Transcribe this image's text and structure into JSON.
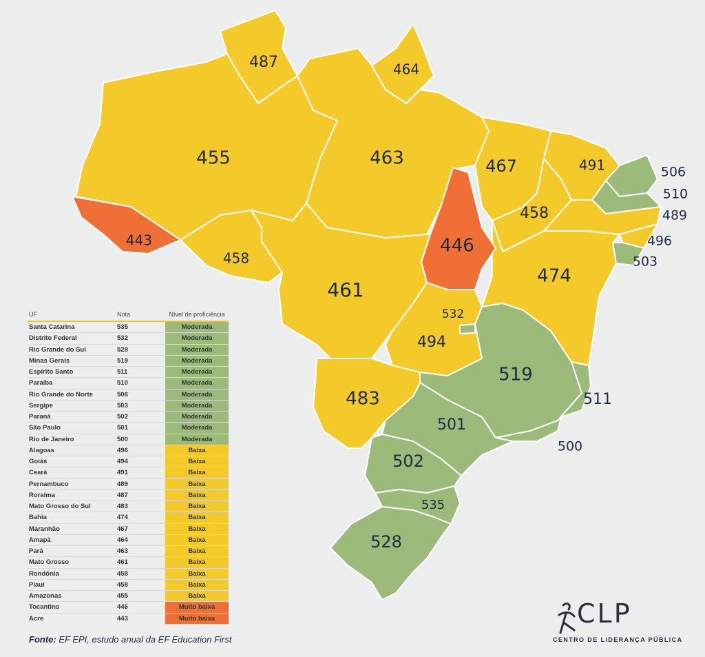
{
  "colors": {
    "moderada": "#9cbb7a",
    "baixa": "#f4ca2a",
    "muito_baixa": "#ef6f36",
    "text": "#1f2a44"
  },
  "table": {
    "col_uf": "UF",
    "col_nota": "Nota",
    "col_nivel": "Nível de proficiência",
    "rows": [
      {
        "uf": "Santa Catarina",
        "nota": "535",
        "nivel": "Moderada",
        "cat": "moderada"
      },
      {
        "uf": "Distrito Federal",
        "nota": "532",
        "nivel": "Moderada",
        "cat": "moderada"
      },
      {
        "uf": "Rio Grande do Sul",
        "nota": "528",
        "nivel": "Moderada",
        "cat": "moderada"
      },
      {
        "uf": "Minas Gerais",
        "nota": "519",
        "nivel": "Moderada",
        "cat": "moderada"
      },
      {
        "uf": "Espírito Santo",
        "nota": "511",
        "nivel": "Moderada",
        "cat": "moderada"
      },
      {
        "uf": "Paraíba",
        "nota": "510",
        "nivel": "Moderada",
        "cat": "moderada"
      },
      {
        "uf": "Rio Grande do Norte",
        "nota": "506",
        "nivel": "Moderada",
        "cat": "moderada"
      },
      {
        "uf": "Sergipe",
        "nota": "503",
        "nivel": "Moderada",
        "cat": "moderada"
      },
      {
        "uf": "Paraná",
        "nota": "502",
        "nivel": "Moderada",
        "cat": "moderada"
      },
      {
        "uf": "São Paulo",
        "nota": "501",
        "nivel": "Moderada",
        "cat": "moderada"
      },
      {
        "uf": "Rio de Janeiro",
        "nota": "500",
        "nivel": "Moderada",
        "cat": "moderada"
      },
      {
        "uf": "Alagoas",
        "nota": "496",
        "nivel": "Baixa",
        "cat": "baixa"
      },
      {
        "uf": "Goiás",
        "nota": "494",
        "nivel": "Baixa",
        "cat": "baixa"
      },
      {
        "uf": "Ceará",
        "nota": "491",
        "nivel": "Baixa",
        "cat": "baixa"
      },
      {
        "uf": "Pernambuco",
        "nota": "489",
        "nivel": "Baixa",
        "cat": "baixa"
      },
      {
        "uf": "Roraima",
        "nota": "487",
        "nivel": "Baixa",
        "cat": "baixa"
      },
      {
        "uf": "Mato Grosso do Sul",
        "nota": "483",
        "nivel": "Baixa",
        "cat": "baixa"
      },
      {
        "uf": "Bahia",
        "nota": "474",
        "nivel": "Baixa",
        "cat": "baixa"
      },
      {
        "uf": "Maranhão",
        "nota": "467",
        "nivel": "Baixa",
        "cat": "baixa"
      },
      {
        "uf": "Amapá",
        "nota": "464",
        "nivel": "Baixa",
        "cat": "baixa"
      },
      {
        "uf": "Pará",
        "nota": "463",
        "nivel": "Baixa",
        "cat": "baixa"
      },
      {
        "uf": "Mato Grosso",
        "nota": "461",
        "nivel": "Baixa",
        "cat": "baixa"
      },
      {
        "uf": "Rondônia",
        "nota": "458",
        "nivel": "Baixa",
        "cat": "baixa"
      },
      {
        "uf": "Piauí",
        "nota": "458",
        "nivel": "Baixa",
        "cat": "baixa"
      },
      {
        "uf": "Amazonas",
        "nota": "455",
        "nivel": "Baixa",
        "cat": "baixa"
      },
      {
        "uf": "Tocantins",
        "nota": "446",
        "nivel": "Muito baixa",
        "cat": "muito_baixa"
      },
      {
        "uf": "Acre",
        "nota": "443",
        "nivel": "Muito baixa",
        "cat": "muito_baixa"
      }
    ]
  },
  "map_scores": {
    "RR": "487",
    "AP": "464",
    "AM": "455",
    "PA": "463",
    "MA": "467",
    "CE": "491",
    "RN": "506",
    "PB": "510",
    "PE": "489",
    "AL": "496",
    "SE": "503",
    "AC": "443",
    "RO": "458",
    "TO": "446",
    "PI": "458",
    "BA": "474",
    "MT": "461",
    "DF": "532",
    "GO": "494",
    "MG": "519",
    "ES": "511",
    "MS": "483",
    "SP": "501",
    "RJ": "500",
    "PR": "502",
    "SC": "535",
    "RS": "528"
  },
  "source": {
    "label": "Fonte:",
    "text": "EF EPI, estudo anual da EF Education First"
  },
  "logo": {
    "name": "CLP",
    "subtitle": "CENTRO DE LIDERANÇA PÚBLICA"
  }
}
